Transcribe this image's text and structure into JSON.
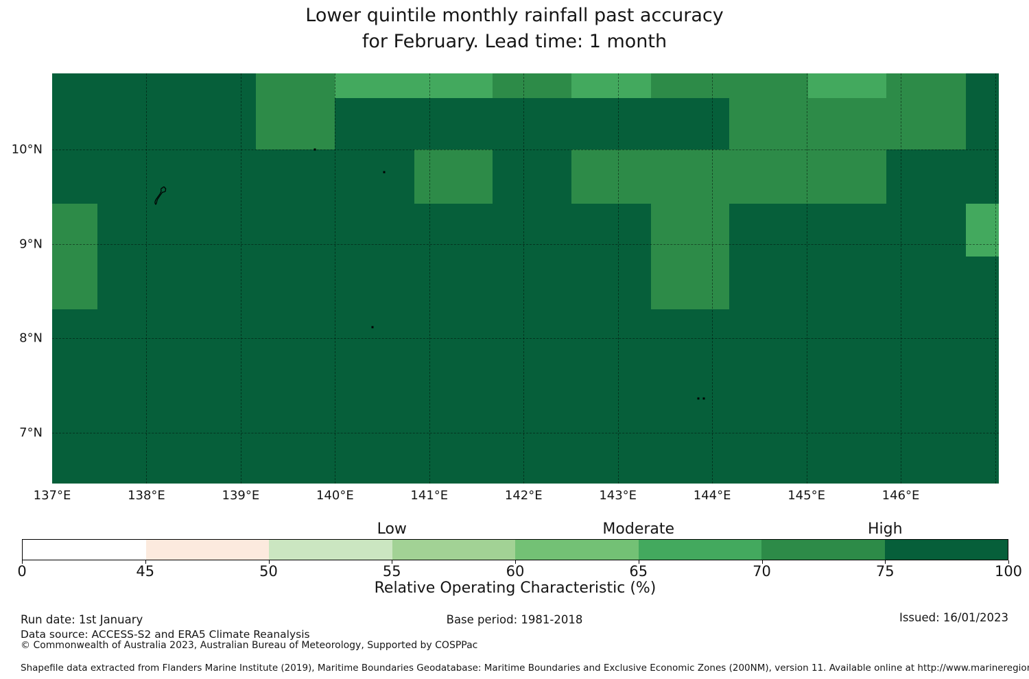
{
  "title": {
    "line1": "Lower quintile monthly rainfall past accuracy",
    "line2": "for February. Lead time: 1 month"
  },
  "chart_data": {
    "type": "heatmap",
    "title": "Lower quintile monthly rainfall past accuracy for February. Lead time: 1 month",
    "x_tick_labels": [
      "137°E",
      "138°E",
      "139°E",
      "140°E",
      "141°E",
      "142°E",
      "143°E",
      "144°E",
      "145°E",
      "146°E"
    ],
    "x_tick_lons": [
      137,
      138,
      139,
      140,
      141,
      142,
      143,
      144,
      145,
      146
    ],
    "y_tick_labels": [
      "10°N",
      "9°N",
      "8°N",
      "7°N"
    ],
    "y_tick_lats": [
      10,
      9,
      8,
      7
    ],
    "lon_range": [
      137,
      147.04
    ],
    "lat_range": [
      6.46,
      10.81
    ],
    "grid_lons": [
      138,
      139,
      140,
      141,
      142,
      143,
      144,
      145,
      146,
      147
    ],
    "grid_lats": [
      10,
      9,
      8,
      7
    ],
    "cell_lon_edges": [
      137,
      137.48,
      138.32,
      139.16,
      140.0,
      140.84,
      141.67,
      142.51,
      143.35,
      144.18,
      145.02,
      145.85,
      146.69,
      147.04
    ],
    "cell_lat_edges": [
      10.81,
      10.55,
      10.0,
      9.43,
      8.87,
      8.31,
      7.75,
      7.19,
      6.63,
      6.46
    ],
    "value_bins": {
      "D": {
        "range_pct": "75-100",
        "color": "#065f3a"
      },
      "M": {
        "range_pct": "70-75",
        "color": "#2d8b48"
      },
      "L": {
        "range_pct": "65-70",
        "color": "#43a95e"
      }
    },
    "grid_values": [
      [
        "D",
        "D",
        "D",
        "M",
        "L",
        "L",
        "M",
        "L",
        "M",
        "M",
        "L",
        "M",
        "D"
      ],
      [
        "D",
        "D",
        "D",
        "M",
        "D",
        "D",
        "D",
        "D",
        "D",
        "M",
        "M",
        "M",
        "D"
      ],
      [
        "D",
        "D",
        "D",
        "D",
        "D",
        "M",
        "D",
        "M",
        "M",
        "M",
        "M",
        "D",
        "D"
      ],
      [
        "M",
        "D",
        "D",
        "D",
        "D",
        "D",
        "D",
        "D",
        "M",
        "D",
        "D",
        "D",
        "L"
      ],
      [
        "M",
        "D",
        "D",
        "D",
        "D",
        "D",
        "D",
        "D",
        "M",
        "D",
        "D",
        "D",
        "D"
      ],
      [
        "D",
        "D",
        "D",
        "D",
        "D",
        "D",
        "D",
        "D",
        "D",
        "D",
        "D",
        "D",
        "D"
      ],
      [
        "D",
        "D",
        "D",
        "D",
        "D",
        "D",
        "D",
        "D",
        "D",
        "D",
        "D",
        "D",
        "D"
      ],
      [
        "D",
        "D",
        "D",
        "D",
        "D",
        "D",
        "D",
        "D",
        "D",
        "D",
        "D",
        "D",
        "D"
      ],
      [
        "D",
        "D",
        "D",
        "D",
        "D",
        "D",
        "D",
        "D",
        "D",
        "D",
        "D",
        "D",
        "D"
      ]
    ],
    "islands": [
      {
        "name": "yap-island",
        "lon": 138.14,
        "lat": 9.5,
        "type": "outline"
      },
      {
        "name": "islet",
        "lon": 139.79,
        "lat": 10.0,
        "type": "dot"
      },
      {
        "name": "islet",
        "lon": 140.52,
        "lat": 9.76,
        "type": "dot"
      },
      {
        "name": "islet",
        "lon": 140.4,
        "lat": 8.12,
        "type": "dot"
      },
      {
        "name": "islet",
        "lon": 143.85,
        "lat": 7.36,
        "type": "dot"
      },
      {
        "name": "islet",
        "lon": 143.91,
        "lat": 7.36,
        "type": "dot"
      }
    ],
    "colorbar": {
      "axis_label": "Relative Operating Characteristic (%)",
      "tick_labels": [
        "0",
        "45",
        "50",
        "55",
        "60",
        "65",
        "70",
        "75",
        "100"
      ],
      "segments": [
        {
          "range": "0-45",
          "color": "#ffffff"
        },
        {
          "range": "45-50",
          "color": "#fceade"
        },
        {
          "range": "50-55",
          "color": "#cbe6c1"
        },
        {
          "range": "55-60",
          "color": "#a2d295"
        },
        {
          "range": "60-65",
          "color": "#73c175"
        },
        {
          "range": "65-70",
          "color": "#43a95e"
        },
        {
          "range": "70-75",
          "color": "#2d8b48"
        },
        {
          "range": "75-100",
          "color": "#065f3a"
        }
      ],
      "category_labels": [
        {
          "label": "Low",
          "tick_index": 3
        },
        {
          "label": "Moderate",
          "tick_index": 5
        },
        {
          "label": "High",
          "tick_index": 7
        }
      ]
    }
  },
  "footer": {
    "run_date": "Run date: 1st January",
    "data_source": "Data source: ACCESS-S2 and ERA5 Climate Reanalysis",
    "copyright": "© Commonwealth of Australia 2023, Australian Bureau of Meteorology, Supported by COSPPac",
    "base_period": "Base period: 1981-2018",
    "issued": "Issued: 16/01/2023",
    "shapefile_note": "Shapefile data extracted from Flanders Marine Institute (2019), Maritime Boundaries Geodatabase: Maritime Boundaries and Exclusive Economic Zones (200NM), version 11. Available online at http://www.marineregions.org/."
  }
}
